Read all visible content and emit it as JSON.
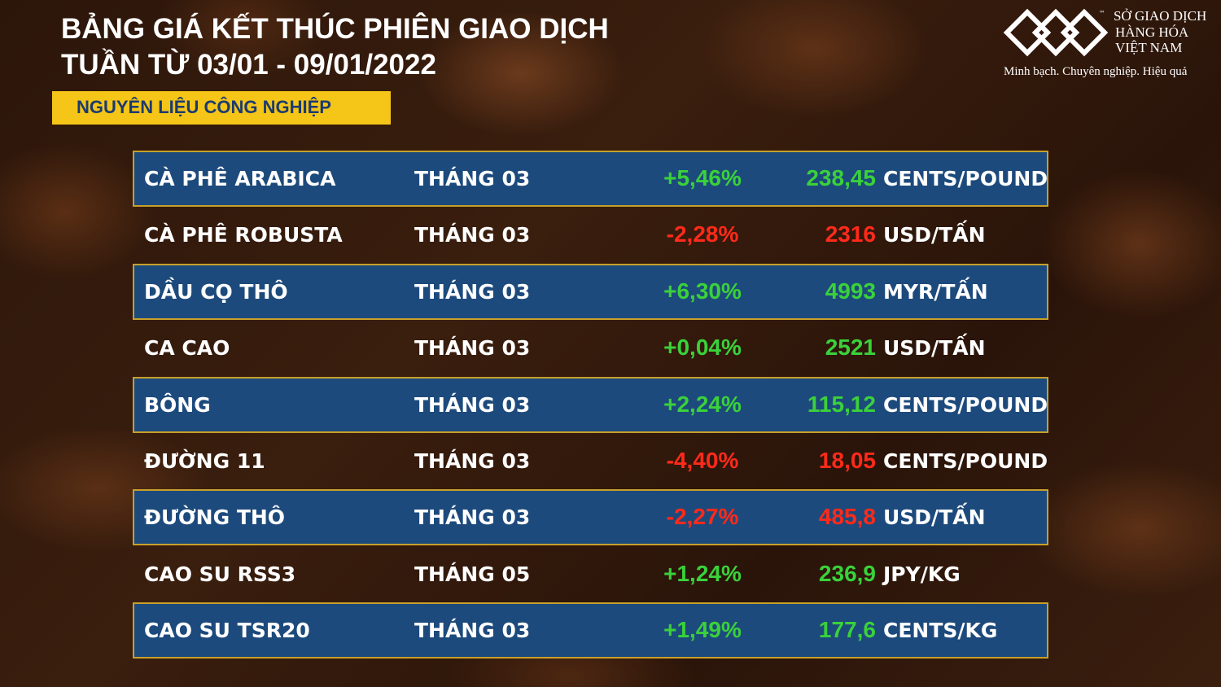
{
  "header": {
    "title_lines": [
      "BẢNG GIÁ KẾT THÚC PHIÊN GIAO DỊCH",
      "TUẦN TỪ 03/01 - 09/01/2022"
    ],
    "category": "NGUYÊN LIỆU CÔNG NGHIỆP"
  },
  "logo": {
    "mark": "™",
    "name_lines": [
      "SỞ GIAO DỊCH",
      "HÀNG HÓA",
      "VIỆT NAM"
    ],
    "slogan": "Minh bạch. Chuyên nghiệp. Hiệu quả"
  },
  "table": {
    "rows": [
      [
        "CÀ PHÊ ARABICA",
        "THÁNG 03",
        "+5,46%",
        "238,45",
        "CENTS/POUND"
      ],
      [
        "CÀ PHÊ ROBUSTA",
        "THÁNG 03",
        "-2,28%",
        "2316",
        "USD/TẤN"
      ],
      [
        "DẦU CỌ THÔ",
        "THÁNG 03",
        "+6,30%",
        "4993",
        "MYR/TẤN"
      ],
      [
        "CA CAO",
        "THÁNG 03",
        "+0,04%",
        "2521",
        "USD/TẤN"
      ],
      [
        "BÔNG",
        "THÁNG 03",
        "+2,24%",
        "115,12",
        "CENTS/POUND"
      ],
      [
        "ĐƯỜNG 11",
        "THÁNG 03",
        "-4,40%",
        "18,05",
        "CENTS/POUND"
      ],
      [
        "ĐƯỜNG THÔ",
        "THÁNG 03",
        "-2,27%",
        "485,8",
        "USD/TẤN"
      ],
      [
        "CAO SU RSS3",
        "THÁNG 05",
        "+1,24%",
        "236,9",
        "JPY/KG"
      ],
      [
        "CAO SU TSR20",
        "THÁNG 03",
        "+1,49%",
        "177,6",
        "CENTS/KG"
      ]
    ]
  }
}
